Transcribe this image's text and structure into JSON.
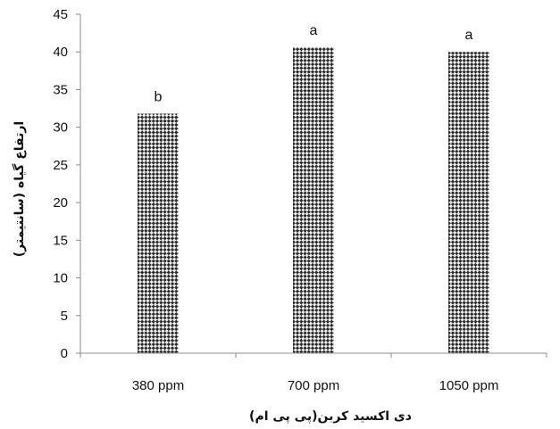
{
  "chart_data": {
    "type": "bar",
    "categories": [
      "380 ppm",
      "700 ppm",
      "1050 ppm"
    ],
    "values": [
      31.8,
      40.6,
      40.0
    ],
    "significance_labels": [
      "b",
      "a",
      "a"
    ],
    "xlabel": "دی اکسید کربن(پی پی ام)",
    "ylabel": "ارتفاع گیاه (سانتیمتر)",
    "ylim": [
      0,
      45
    ],
    "yticks": [
      0,
      5,
      10,
      15,
      20,
      25,
      30,
      35,
      40,
      45
    ],
    "grid": false,
    "legend": "none",
    "bar_fill": "crosshatch",
    "colors": {
      "bar_dark": "#2b2b2b",
      "bar_light": "#f0f0f0",
      "axis": "#8c8c8c"
    }
  }
}
